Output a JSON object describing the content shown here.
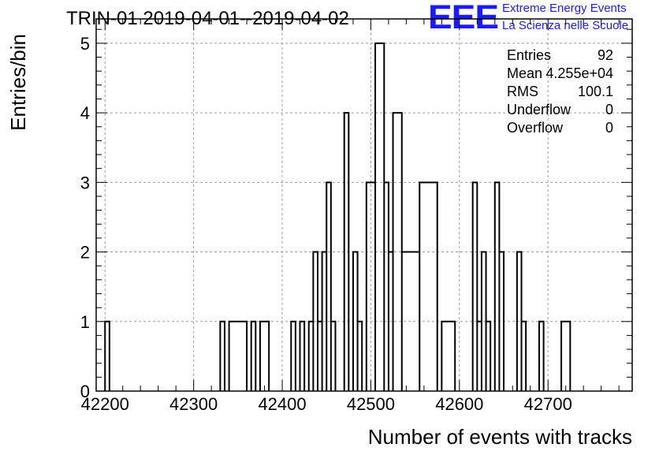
{
  "chart_data": {
    "type": "bar",
    "subtype": "histogram",
    "title": "TRIN-01 2019-04-01--2019-04-02",
    "xlabel": "Number of events with tracks",
    "ylabel": "Entries/bin",
    "xlim": [
      42190,
      42795
    ],
    "ylim": [
      0,
      5.35
    ],
    "bin_width": 5,
    "xticks": [
      42200,
      42300,
      42400,
      42500,
      42600,
      42700
    ],
    "yticks": [
      0,
      1,
      2,
      3,
      4,
      5
    ],
    "grid": true,
    "bins": [
      {
        "x0": 42200,
        "x1": 42205,
        "value": 1
      },
      {
        "x0": 42330,
        "x1": 42335,
        "value": 1
      },
      {
        "x0": 42340,
        "x1": 42360,
        "value": 1
      },
      {
        "x0": 42365,
        "x1": 42370,
        "value": 1
      },
      {
        "x0": 42375,
        "x1": 42385,
        "value": 1
      },
      {
        "x0": 42410,
        "x1": 42415,
        "value": 1
      },
      {
        "x0": 42420,
        "x1": 42425,
        "value": 1
      },
      {
        "x0": 42430,
        "x1": 42435,
        "value": 1
      },
      {
        "x0": 42435,
        "x1": 42440,
        "value": 2
      },
      {
        "x0": 42440,
        "x1": 42445,
        "value": 1
      },
      {
        "x0": 42445,
        "x1": 42450,
        "value": 2
      },
      {
        "x0": 42450,
        "x1": 42455,
        "value": 3
      },
      {
        "x0": 42455,
        "x1": 42460,
        "value": 1
      },
      {
        "x0": 42470,
        "x1": 42475,
        "value": 4
      },
      {
        "x0": 42480,
        "x1": 42485,
        "value": 2
      },
      {
        "x0": 42485,
        "x1": 42490,
        "value": 1
      },
      {
        "x0": 42495,
        "x1": 42505,
        "value": 3
      },
      {
        "x0": 42505,
        "x1": 42515,
        "value": 5
      },
      {
        "x0": 42515,
        "x1": 42520,
        "value": 3
      },
      {
        "x0": 42520,
        "x1": 42525,
        "value": 2
      },
      {
        "x0": 42525,
        "x1": 42535,
        "value": 4
      },
      {
        "x0": 42535,
        "x1": 42555,
        "value": 2
      },
      {
        "x0": 42555,
        "x1": 42575,
        "value": 3
      },
      {
        "x0": 42580,
        "x1": 42595,
        "value": 1
      },
      {
        "x0": 42615,
        "x1": 42620,
        "value": 3
      },
      {
        "x0": 42620,
        "x1": 42625,
        "value": 1
      },
      {
        "x0": 42625,
        "x1": 42630,
        "value": 2
      },
      {
        "x0": 42630,
        "x1": 42635,
        "value": 1
      },
      {
        "x0": 42640,
        "x1": 42645,
        "value": 3
      },
      {
        "x0": 42645,
        "x1": 42650,
        "value": 2
      },
      {
        "x0": 42665,
        "x1": 42670,
        "value": 2
      },
      {
        "x0": 42670,
        "x1": 42675,
        "value": 1
      },
      {
        "x0": 42690,
        "x1": 42695,
        "value": 1
      },
      {
        "x0": 42715,
        "x1": 42725,
        "value": 1
      }
    ],
    "stats": [
      {
        "label": "Entries",
        "value": "92"
      },
      {
        "label": "Mean",
        "value": "4.255e+04"
      },
      {
        "label": "RMS",
        "value": "100.1"
      },
      {
        "label": "Underflow",
        "value": "0"
      },
      {
        "label": "Overflow",
        "value": "0"
      }
    ]
  },
  "logo": {
    "mark": "EEE",
    "line1": "Extreme Energy Events",
    "line2": "La Scienza nelle Scuole"
  },
  "colors": {
    "line": "#000000",
    "grid": "#9a9a9a",
    "logo": "#1a1aff"
  }
}
